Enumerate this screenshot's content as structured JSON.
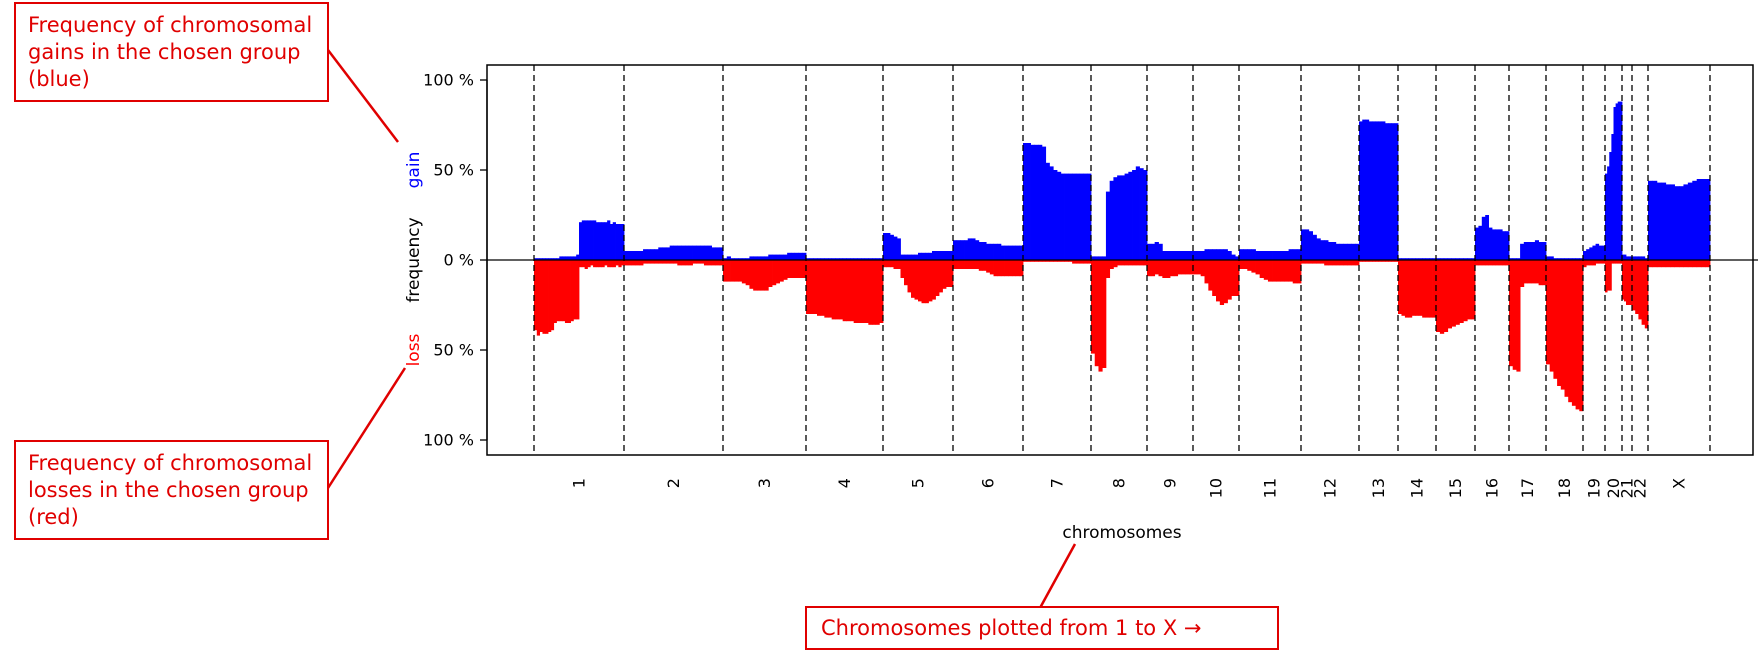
{
  "callouts": {
    "gains": "Frequency of chromosomal gains in the chosen group (blue)",
    "losses": "Frequency of chromosomal losses in the chosen group (red)",
    "order": "Chromosomes plotted from 1 to X →"
  },
  "colors": {
    "gain": "#0000ff",
    "loss": "#ff0000",
    "callout": "#e00000",
    "axis": "#000000"
  },
  "chart_data": {
    "type": "area",
    "xlabel": "chromosomes",
    "ylabel": "frequency",
    "ylabel_gain": "gain",
    "ylabel_loss": "loss",
    "ylim": [
      -100,
      100
    ],
    "yticks": [
      100,
      50,
      0,
      -50,
      -100
    ],
    "ytick_labels": [
      "100 %",
      "50 %",
      "0 %",
      "50 %",
      "100 %"
    ],
    "series": [
      {
        "name": "gain",
        "color": "#0000ff"
      },
      {
        "name": "loss",
        "color": "#ff0000"
      }
    ],
    "chromosomes": [
      {
        "name": "1",
        "gain": [
          1,
          1,
          1,
          1,
          1,
          1,
          1,
          1,
          1,
          2,
          2,
          2,
          2,
          2,
          2,
          3,
          21,
          22,
          22,
          22,
          22,
          22,
          21,
          21,
          21,
          21,
          22,
          20,
          21,
          20,
          20,
          20
        ],
        "loss": [
          39,
          42,
          40,
          41,
          41,
          40,
          39,
          35,
          34,
          34,
          34,
          35,
          35,
          34,
          33,
          33,
          4,
          4,
          5,
          4,
          3,
          4,
          4,
          4,
          4,
          3,
          4,
          4,
          4,
          3,
          4,
          3
        ]
      },
      {
        "name": "2",
        "gain": [
          5,
          5,
          5,
          5,
          5,
          6,
          6,
          6,
          6,
          7,
          7,
          7,
          8,
          8,
          8,
          8,
          8,
          8,
          8,
          8,
          8,
          8,
          8,
          7,
          7,
          7
        ],
        "loss": [
          3,
          3,
          3,
          3,
          3,
          2,
          2,
          2,
          2,
          2,
          2,
          2,
          2,
          2,
          3,
          3,
          3,
          3,
          2,
          2,
          2,
          3,
          3,
          3,
          3,
          3
        ]
      },
      {
        "name": "3",
        "gain": [
          1,
          2,
          1,
          1,
          1,
          1,
          1,
          2,
          2,
          2,
          2,
          2,
          3,
          3,
          3,
          3,
          3,
          4,
          4,
          4,
          4,
          4
        ],
        "loss": [
          12,
          12,
          12,
          12,
          12,
          13,
          14,
          16,
          17,
          17,
          17,
          17,
          15,
          14,
          13,
          12,
          11,
          10,
          10,
          10,
          10,
          10
        ]
      },
      {
        "name": "4",
        "gain": [
          1,
          1,
          1,
          1,
          1,
          1,
          1,
          1,
          1,
          1,
          1,
          1,
          1,
          1,
          1,
          1,
          1,
          1,
          1,
          1,
          1
        ],
        "loss": [
          30,
          30,
          30,
          31,
          31,
          32,
          32,
          33,
          33,
          33,
          34,
          34,
          34,
          35,
          35,
          35,
          35,
          36,
          36,
          36,
          35
        ]
      },
      {
        "name": "5",
        "gain": [
          15,
          15,
          14,
          13,
          12,
          3,
          3,
          3,
          3,
          3,
          4,
          4,
          4,
          4,
          5,
          5,
          5,
          5,
          5,
          5
        ],
        "loss": [
          4,
          4,
          4,
          5,
          5,
          10,
          14,
          18,
          21,
          22,
          23,
          24,
          24,
          23,
          22,
          20,
          18,
          16,
          15,
          15
        ]
      },
      {
        "name": "6",
        "gain": [
          11,
          11,
          11,
          11,
          12,
          12,
          11,
          10,
          10,
          9,
          9,
          9,
          9,
          8,
          8,
          8,
          8,
          8,
          8
        ],
        "loss": [
          5,
          5,
          5,
          5,
          5,
          5,
          5,
          6,
          6,
          7,
          8,
          9,
          9,
          9,
          9,
          9,
          9,
          9,
          9
        ]
      },
      {
        "name": "7",
        "gain": [
          65,
          65,
          64,
          64,
          64,
          63,
          54,
          52,
          50,
          49,
          48,
          48,
          48,
          48,
          48,
          48,
          48,
          48
        ],
        "loss": [
          1,
          1,
          1,
          1,
          1,
          1,
          1,
          1,
          1,
          1,
          1,
          1,
          1,
          2,
          2,
          2,
          2,
          2
        ]
      },
      {
        "name": "8",
        "gain": [
          2,
          2,
          2,
          2,
          38,
          44,
          46,
          47,
          47,
          48,
          49,
          50,
          52,
          51,
          50
        ],
        "loss": [
          52,
          59,
          62,
          60,
          10,
          5,
          4,
          3,
          3,
          3,
          3,
          3,
          3,
          3,
          3
        ]
      },
      {
        "name": "9",
        "gain": [
          9,
          9,
          10,
          9,
          5,
          5,
          5,
          5,
          5,
          5,
          5,
          5
        ],
        "loss": [
          9,
          9,
          8,
          9,
          10,
          10,
          9,
          9,
          8,
          8,
          8,
          8
        ]
      },
      {
        "name": "10",
        "gain": [
          5,
          5,
          5,
          6,
          6,
          6,
          6,
          6,
          6,
          5,
          3,
          2
        ],
        "loss": [
          8,
          8,
          9,
          13,
          17,
          20,
          23,
          25,
          24,
          22,
          20,
          20
        ]
      },
      {
        "name": "11",
        "gain": [
          6,
          6,
          6,
          6,
          5,
          5,
          5,
          5,
          5,
          5,
          5,
          5,
          6,
          6,
          6
        ],
        "loss": [
          5,
          5,
          6,
          7,
          8,
          10,
          11,
          12,
          12,
          12,
          12,
          12,
          12,
          13,
          13
        ]
      },
      {
        "name": "12",
        "gain": [
          17,
          17,
          16,
          14,
          12,
          11,
          11,
          10,
          10,
          9,
          9,
          9,
          9,
          9,
          9
        ],
        "loss": [
          2,
          2,
          2,
          2,
          2,
          2,
          3,
          3,
          3,
          3,
          3,
          3,
          3,
          3,
          3
        ]
      },
      {
        "name": "13",
        "gain": [
          77,
          78,
          78,
          77,
          77,
          77,
          77,
          77,
          76,
          76,
          76,
          76
        ],
        "loss": [
          1,
          1,
          1,
          1,
          1,
          1,
          1,
          1,
          1,
          1,
          1,
          1
        ]
      },
      {
        "name": "14",
        "gain": [
          1,
          1,
          1,
          1,
          1,
          1,
          1,
          1,
          1,
          1,
          1
        ],
        "loss": [
          30,
          31,
          32,
          32,
          31,
          31,
          31,
          32,
          32,
          32,
          32
        ]
      },
      {
        "name": "15",
        "gain": [
          1,
          1,
          1,
          1,
          1,
          1,
          1,
          1,
          1,
          1
        ],
        "loss": [
          40,
          41,
          40,
          38,
          37,
          36,
          35,
          34,
          33,
          33
        ]
      },
      {
        "name": "16",
        "gain": [
          18,
          19,
          24,
          25,
          18,
          17,
          17,
          17,
          16,
          16
        ],
        "loss": [
          3,
          3,
          3,
          3,
          3,
          3,
          3,
          3,
          3,
          3
        ]
      },
      {
        "name": "17",
        "gain": [
          1,
          1,
          1,
          9,
          10,
          10,
          10,
          11,
          10,
          10
        ],
        "loss": [
          59,
          61,
          62,
          15,
          13,
          13,
          13,
          13,
          14,
          14
        ]
      },
      {
        "name": "18",
        "gain": [
          2,
          2,
          1,
          1,
          1,
          1,
          1,
          1,
          1,
          1
        ],
        "loss": [
          58,
          62,
          66,
          70,
          72,
          76,
          79,
          81,
          83,
          84
        ]
      },
      {
        "name": "19",
        "gain": [
          5,
          6,
          7,
          8,
          9,
          8,
          8
        ],
        "loss": [
          4,
          3,
          3,
          3,
          2,
          2,
          2
        ]
      },
      {
        "name": "20",
        "gain": [
          48,
          52,
          60,
          70,
          85,
          87,
          88,
          88
        ],
        "loss": [
          18,
          17,
          17,
          2,
          2,
          2,
          2,
          2
        ]
      },
      {
        "name": "21",
        "gain": [
          3,
          3,
          2,
          2,
          2
        ],
        "loss": [
          22,
          23,
          25,
          25,
          25
        ]
      },
      {
        "name": "22",
        "gain": [
          2,
          2,
          2,
          2,
          1
        ],
        "loss": [
          28,
          30,
          33,
          36,
          38
        ]
      },
      {
        "name": "X",
        "gain": [
          44,
          44,
          43,
          43,
          42,
          42,
          41,
          41,
          42,
          43,
          44,
          45,
          45,
          45
        ],
        "loss": [
          4,
          4,
          4,
          4,
          4,
          4,
          4,
          4,
          4,
          4,
          4,
          4,
          4,
          4
        ]
      }
    ]
  }
}
